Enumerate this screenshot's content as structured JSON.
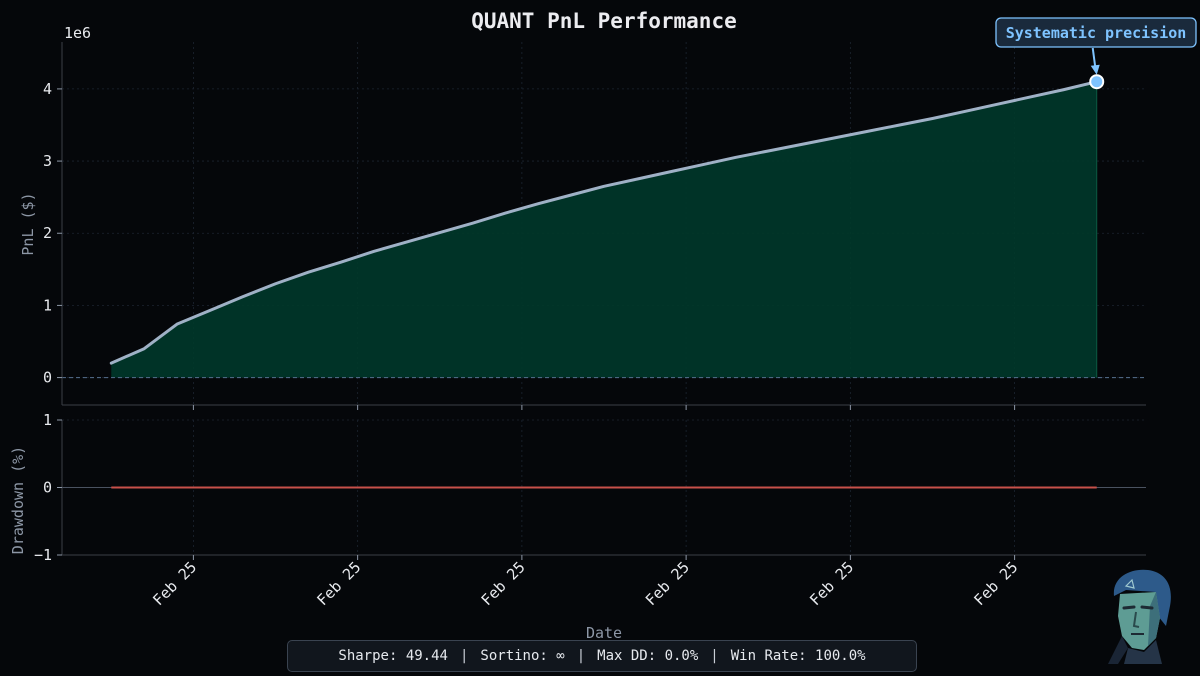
{
  "chart_data": [
    {
      "type": "area",
      "title": "QUANT PnL Performance",
      "xlabel": "",
      "ylabel": "PnL ($)",
      "y_scale_label": "1e6",
      "ylim": [
        -0.38,
        4.65
      ],
      "yticks": [
        0,
        1,
        2,
        3,
        4
      ],
      "ytick_labels": [
        "0",
        "1",
        "2",
        "3",
        "4"
      ],
      "grid": true,
      "x": [
        0,
        1,
        2,
        3,
        4,
        5,
        6,
        7,
        8,
        9,
        10,
        11,
        12,
        13,
        14,
        15,
        16,
        17,
        18,
        19,
        20,
        21,
        22,
        23,
        24,
        25,
        26,
        27,
        28,
        29,
        30
      ],
      "xlim": [
        -1.5,
        31.5
      ],
      "series": [
        {
          "name": "PnL",
          "values": [
            0.2,
            0.4,
            0.74,
            0.93,
            1.12,
            1.3,
            1.46,
            1.6,
            1.75,
            1.88,
            2.01,
            2.14,
            2.28,
            2.41,
            2.53,
            2.65,
            2.75,
            2.85,
            2.95,
            3.05,
            3.14,
            3.23,
            3.32,
            3.41,
            3.5,
            3.59,
            3.69,
            3.79,
            3.89,
            3.99,
            4.1
          ]
        }
      ],
      "baseline": 0,
      "annotation": {
        "text": "Systematic precision",
        "x": 30,
        "y": 4.1
      }
    },
    {
      "type": "line",
      "xlabel": "Date",
      "ylabel": "Drawdown (%)",
      "ylim": [
        -1,
        1
      ],
      "yticks": [
        1,
        0,
        -1
      ],
      "ytick_labels": [
        "1",
        "0",
        "−1"
      ],
      "grid": true,
      "x": [
        0,
        30
      ],
      "xlim": [
        -1.5,
        31.5
      ],
      "series": [
        {
          "name": "Drawdown",
          "values": [
            0,
            0
          ]
        }
      ],
      "xticks": [
        2.5,
        7.5,
        12.5,
        17.5,
        22.5,
        27.5
      ],
      "xtick_labels": [
        "Feb 25",
        "Feb 25",
        "Feb 25",
        "Feb 25",
        "Feb 25",
        "Feb 25"
      ]
    }
  ],
  "colors": {
    "background": "#05070a",
    "axis": "#3a3f47",
    "grid": "#1c2430",
    "tick_text": "#e8eaee",
    "label_text": "#8d97a6",
    "pnl_line": "#9fb1c6",
    "pnl_fill": "#00382a",
    "zero_line": "#56708f",
    "drawdown_line": "#c8504a",
    "annotation": "#7ec3ff",
    "annotation_bg": "#1a2a3c"
  },
  "stats": {
    "sharpe": "Sharpe: 49.44",
    "sortino": "Sortino: ∞",
    "max_dd": "Max DD: 0.0%",
    "win_rate": "Win Rate: 100.0%",
    "separator": "|"
  }
}
